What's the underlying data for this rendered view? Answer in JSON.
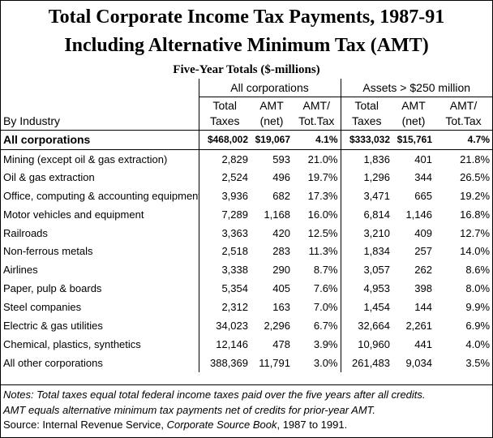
{
  "title_line1": "Total Corporate Income Tax Payments, 1987-91",
  "title_line2": "Including Alternative Minimum Tax (AMT)",
  "subtitle": "Five-Year Totals ($-millions)",
  "groups": {
    "all": "All corporations",
    "large": "Assets > $250 million"
  },
  "headers": {
    "row1": [
      "Total",
      "AMT",
      "AMT/",
      "Total",
      "AMT",
      "AMT/"
    ],
    "row2": [
      "Taxes",
      "(net)",
      "Tot.Tax",
      "Taxes",
      "(net)",
      "Tot.Tax"
    ],
    "industry": "By Industry"
  },
  "totals": {
    "label": "All corporations",
    "cells": [
      "$468,002",
      "$19,067",
      "4.1%",
      "$333,032",
      "$15,761",
      "4.7%"
    ]
  },
  "rows": [
    {
      "label": "Mining (except oil & gas extraction)",
      "cells": [
        "2,829",
        "593",
        "21.0%",
        "1,836",
        "401",
        "21.8%"
      ]
    },
    {
      "label": "Oil & gas extraction",
      "cells": [
        "2,524",
        "496",
        "19.7%",
        "1,296",
        "344",
        "26.5%"
      ]
    },
    {
      "label": "Office, computing & accounting equipment",
      "cells": [
        "3,936",
        "682",
        "17.3%",
        "3,471",
        "665",
        "19.2%"
      ]
    },
    {
      "label": "Motor vehicles and equipment",
      "cells": [
        "7,289",
        "1,168",
        "16.0%",
        "6,814",
        "1,146",
        "16.8%"
      ]
    },
    {
      "label": "Railroads",
      "cells": [
        "3,363",
        "420",
        "12.5%",
        "3,210",
        "409",
        "12.7%"
      ]
    },
    {
      "label": "Non-ferrous metals",
      "cells": [
        "2,518",
        "283",
        "11.3%",
        "1,834",
        "257",
        "14.0%"
      ]
    },
    {
      "label": "Airlines",
      "cells": [
        "3,338",
        "290",
        "8.7%",
        "3,057",
        "262",
        "8.6%"
      ]
    },
    {
      "label": "Paper, pulp & boards",
      "cells": [
        "5,354",
        "405",
        "7.6%",
        "4,953",
        "398",
        "8.0%"
      ]
    },
    {
      "label": "Steel companies",
      "cells": [
        "2,312",
        "163",
        "7.0%",
        "1,454",
        "144",
        "9.9%"
      ]
    },
    {
      "label": "Electric & gas utilities",
      "cells": [
        "34,023",
        "2,296",
        "6.7%",
        "32,664",
        "2,261",
        "6.9%"
      ]
    },
    {
      "label": "Chemical, plastics, synthetics",
      "cells": [
        "12,146",
        "478",
        "3.9%",
        "10,960",
        "441",
        "4.0%"
      ]
    },
    {
      "label": "All other corporations",
      "cells": [
        "388,369",
        "11,791",
        "3.0%",
        "261,483",
        "9,034",
        "3.5%"
      ]
    }
  ],
  "notes": {
    "line1": "Notes: Total taxes equal total federal income taxes paid over the five years after all credits.",
    "line2": "AMT equals alternative minimum tax payments net of credits for prior-year AMT.",
    "source_prefix": "Source: Internal Revenue Service, ",
    "source_title": "Corporate Source Book",
    "source_suffix": ", 1987 to 1991."
  }
}
